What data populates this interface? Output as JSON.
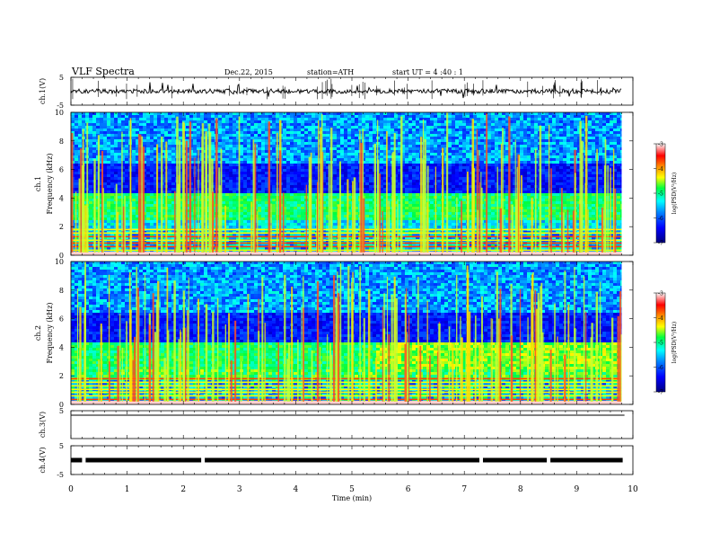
{
  "header": {
    "title": "VLF Spectra",
    "date": "Dec.22, 2015",
    "station": "station=ATH",
    "start": "start  UT =   4  :40 : 1"
  },
  "chart_data": [
    {
      "type": "line",
      "name": "ch1-waveform",
      "ylabel": "ch.1(V)",
      "ylim": [
        -5,
        5
      ],
      "ytick_labels": [
        "5",
        "-5"
      ],
      "xlim": [
        0,
        10
      ],
      "baseline": 0,
      "trace_end_min": 9.8
    },
    {
      "type": "heatmap",
      "name": "ch1-spectrogram",
      "ylabel": "ch.1\nFrequency (kHz)",
      "ylim": [
        0,
        10
      ],
      "ytick_labels": [
        "0",
        "2",
        "4",
        "6",
        "8",
        "10"
      ],
      "xlim": [
        0,
        10
      ],
      "data_end_min": 9.8
    },
    {
      "type": "heatmap",
      "name": "ch2-spectrogram",
      "ylabel": "ch.2\nFrequency (kHz)",
      "ylim": [
        0,
        10
      ],
      "ytick_labels": [
        "0",
        "2",
        "4",
        "6",
        "8",
        "10"
      ],
      "xlim": [
        0,
        10
      ],
      "data_end_min": 9.8
    },
    {
      "type": "line",
      "name": "ch3-waveform",
      "ylabel": "ch.3(V)",
      "ytick_labels": [
        "5"
      ],
      "xlim": [
        0,
        10
      ],
      "baseline": 0
    },
    {
      "type": "line",
      "name": "ch4-waveform",
      "ylabel": "ch.4(V)",
      "ylim": [
        -5,
        5
      ],
      "ytick_labels": [
        "5",
        "-5"
      ],
      "xlim": [
        0,
        10
      ],
      "baseline": 0,
      "gaps_min": [
        0.23,
        2.35,
        7.3,
        8.5
      ]
    }
  ],
  "xaxis": {
    "label": "Time  (min)",
    "tick_labels": [
      "0",
      "1",
      "2",
      "3",
      "4",
      "5",
      "6",
      "7",
      "8",
      "9",
      "10"
    ]
  },
  "colorbar": {
    "label": "log(PSD(V²/Hz)",
    "tick_labels": [
      "-3",
      "-4",
      "-5",
      "-6",
      "-7"
    ],
    "range": [
      -7,
      -3
    ]
  },
  "colors": {
    "spectrogram_low": "#000090",
    "spectrogram_mid": "#00ff60",
    "spectrogram_high": "#ff0000",
    "trace": "#000000"
  }
}
